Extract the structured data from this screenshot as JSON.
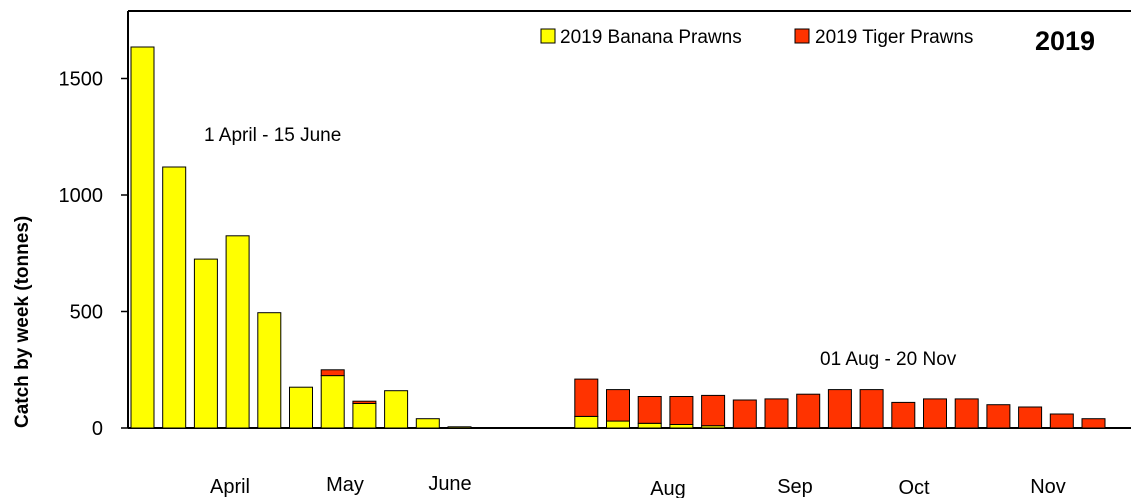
{
  "chart_data": {
    "type": "bar",
    "stacked": true,
    "title": "2019",
    "ylabel": "Catch by week (tonnes)",
    "xlabel": "",
    "ylim": [
      0,
      1800
    ],
    "yticks": [
      0,
      500,
      1000,
      1500
    ],
    "grid": false,
    "legend_position": "top-right",
    "month_labels": [
      "April",
      "May",
      "June",
      "Aug",
      "Sep",
      "Oct",
      "Nov"
    ],
    "annotations": [
      "1 April - 15 June",
      "01 Aug - 20 Nov"
    ],
    "series": [
      {
        "name": "2019 Banana Prawns",
        "color": "#FFFF00",
        "values": [
          1635,
          1120,
          725,
          825,
          495,
          175,
          225,
          105,
          160,
          40,
          5,
          0,
          0,
          0,
          50,
          30,
          20,
          15,
          10,
          0,
          0,
          0,
          0,
          0,
          0,
          0,
          0,
          0,
          0,
          0
        ]
      },
      {
        "name": "2019 Tiger Prawns",
        "color": "#FF3300",
        "values": [
          0,
          0,
          0,
          0,
          0,
          0,
          25,
          10,
          0,
          0,
          0,
          0,
          0,
          0,
          160,
          135,
          115,
          120,
          130,
          120,
          125,
          145,
          165,
          165,
          110,
          125,
          125,
          100,
          90,
          60
        ]
      }
    ],
    "extra_bar": {
      "series": "2019 Tiger Prawns",
      "value": 40
    }
  }
}
